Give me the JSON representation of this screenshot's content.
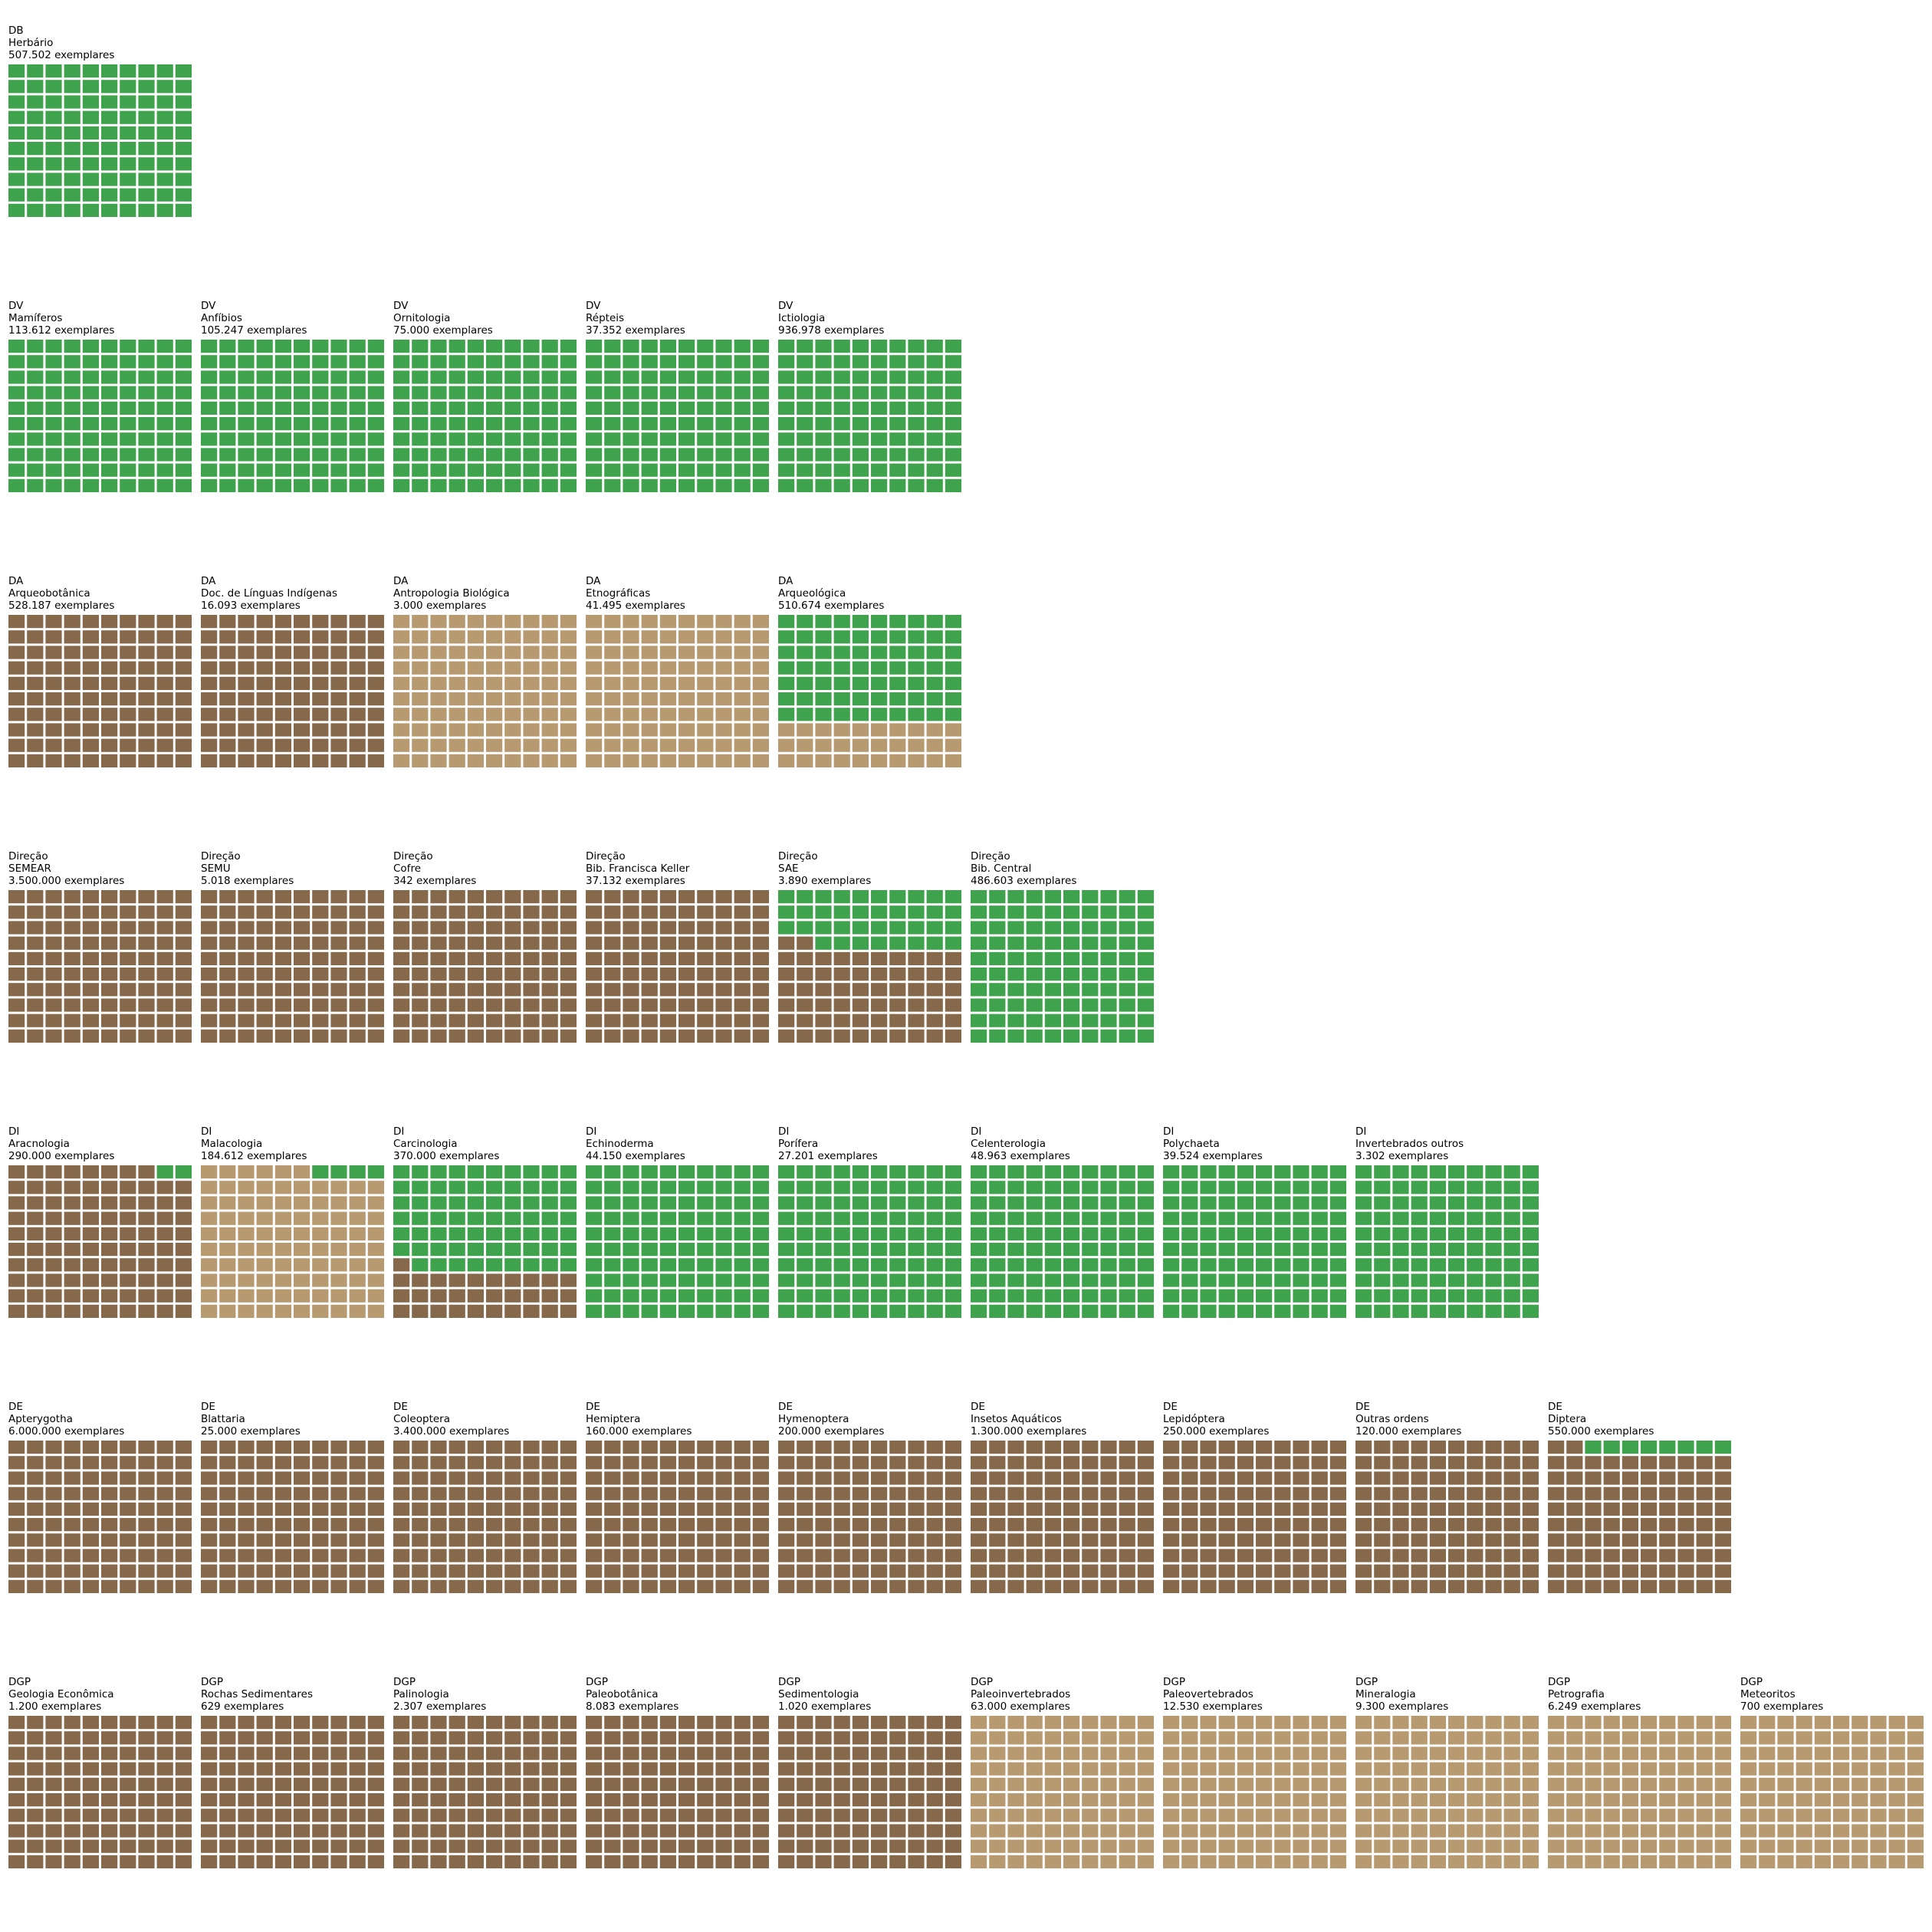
{
  "colors": {
    "green": "#3fa34d",
    "dark_brown": "#85694a",
    "light_brown": "#b89a71",
    "background": "#ffffff"
  },
  "chart_data": {
    "type": "waffle",
    "title": "",
    "units_per_grid": 100,
    "grid_columns": 10,
    "grid_rows": 10,
    "fill_order": "bottom-up, left-to-right",
    "rows": [
      {
        "department": "DB",
        "panels": [
          {
            "name": "Herbário",
            "count_label": "507.502 exemplares",
            "green": 100,
            "dark_brown": 0,
            "light_brown": 0
          }
        ]
      },
      {
        "department": "DV",
        "panels": [
          {
            "name": "Mamíferos",
            "count_label": "113.612 exemplares",
            "green": 100,
            "dark_brown": 0,
            "light_brown": 0
          },
          {
            "name": "Anfíbios",
            "count_label": "105.247 exemplares",
            "green": 100,
            "dark_brown": 0,
            "light_brown": 0
          },
          {
            "name": "Ornitologia",
            "count_label": "75.000 exemplares",
            "green": 100,
            "dark_brown": 0,
            "light_brown": 0
          },
          {
            "name": "Répteis",
            "count_label": "37.352 exemplares",
            "green": 100,
            "dark_brown": 0,
            "light_brown": 0
          },
          {
            "name": "Ictiologia",
            "count_label": "936.978 exemplares",
            "green": 100,
            "dark_brown": 0,
            "light_brown": 0
          }
        ]
      },
      {
        "department": "DA",
        "panels": [
          {
            "name": "Arqueobotânica",
            "count_label": "528.187 exemplares",
            "green": 0,
            "dark_brown": 100,
            "light_brown": 0
          },
          {
            "name": "Doc. de Línguas Indígenas",
            "count_label": "16.093 exemplares",
            "green": 0,
            "dark_brown": 100,
            "light_brown": 0
          },
          {
            "name": "Antropologia Biológica",
            "count_label": "3.000 exemplares",
            "green": 0,
            "dark_brown": 0,
            "light_brown": 100
          },
          {
            "name": "Etnográficas",
            "count_label": "41.495 exemplares",
            "green": 0,
            "dark_brown": 0,
            "light_brown": 100
          },
          {
            "name": "Arqueológica",
            "count_label": "510.674 exemplares",
            "green": 70,
            "dark_brown": 0,
            "light_brown": 30
          }
        ]
      },
      {
        "department": "Direção",
        "panels": [
          {
            "name": "SEMEAR",
            "count_label": "3.500.000 exemplares",
            "green": 0,
            "dark_brown": 100,
            "light_brown": 0
          },
          {
            "name": "SEMU",
            "count_label": "5.018 exemplares",
            "green": 0,
            "dark_brown": 100,
            "light_brown": 0
          },
          {
            "name": "Cofre",
            "count_label": "342 exemplares",
            "green": 0,
            "dark_brown": 100,
            "light_brown": 0
          },
          {
            "name": "Bib. Francisca Keller",
            "count_label": "37.132 exemplares",
            "green": 0,
            "dark_brown": 100,
            "light_brown": 0
          },
          {
            "name": "SAE",
            "count_label": "3.890 exemplares",
            "green": 38,
            "dark_brown": 62,
            "light_brown": 0
          },
          {
            "name": "Bib. Central",
            "count_label": "486.603 exemplares",
            "green": 100,
            "dark_brown": 0,
            "light_brown": 0
          }
        ]
      },
      {
        "department": "DI",
        "panels": [
          {
            "name": "Aracnologia",
            "count_label": "290.000 exemplares",
            "green": 2,
            "dark_brown": 98,
            "light_brown": 0
          },
          {
            "name": "Malacologia",
            "count_label": "184.612 exemplares",
            "green": 4,
            "dark_brown": 0,
            "light_brown": 96
          },
          {
            "name": "Carcinologia",
            "count_label": "370.000 exemplares",
            "green": 69,
            "dark_brown": 31,
            "light_brown": 0
          },
          {
            "name": "Echinoderma",
            "count_label": "44.150 exemplares",
            "green": 100,
            "dark_brown": 0,
            "light_brown": 0
          },
          {
            "name": "Porífera",
            "count_label": "27.201 exemplares",
            "green": 100,
            "dark_brown": 0,
            "light_brown": 0
          },
          {
            "name": "Celenterologia",
            "count_label": "48.963 exemplares",
            "green": 100,
            "dark_brown": 0,
            "light_brown": 0
          },
          {
            "name": "Polychaeta",
            "count_label": "39.524 exemplares",
            "green": 100,
            "dark_brown": 0,
            "light_brown": 0
          },
          {
            "name": "Invertebrados outros",
            "count_label": "3.302 exemplares",
            "green": 100,
            "dark_brown": 0,
            "light_brown": 0
          }
        ]
      },
      {
        "department": "DE",
        "panels": [
          {
            "name": "Apterygotha",
            "count_label": "6.000.000 exemplares",
            "green": 0,
            "dark_brown": 100,
            "light_brown": 0
          },
          {
            "name": "Blattaria",
            "count_label": "25.000 exemplares",
            "green": 0,
            "dark_brown": 100,
            "light_brown": 0
          },
          {
            "name": "Coleoptera",
            "count_label": "3.400.000 exemplares",
            "green": 0,
            "dark_brown": 100,
            "light_brown": 0
          },
          {
            "name": "Hemiptera",
            "count_label": "160.000 exemplares",
            "green": 0,
            "dark_brown": 100,
            "light_brown": 0
          },
          {
            "name": "Hymenoptera",
            "count_label": "200.000 exemplares",
            "green": 0,
            "dark_brown": 100,
            "light_brown": 0
          },
          {
            "name": "Insetos Aquáticos",
            "count_label": "1.300.000 exemplares",
            "green": 0,
            "dark_brown": 100,
            "light_brown": 0
          },
          {
            "name": "Lepidóptera",
            "count_label": "250.000 exemplares",
            "green": 0,
            "dark_brown": 100,
            "light_brown": 0
          },
          {
            "name": "Outras ordens",
            "count_label": "120.000 exemplares",
            "green": 0,
            "dark_brown": 100,
            "light_brown": 0
          },
          {
            "name": "Diptera",
            "count_label": "550.000 exemplares",
            "green": 8,
            "dark_brown": 92,
            "light_brown": 0
          }
        ]
      },
      {
        "department": "DGP",
        "panels": [
          {
            "name": "Geologia Econômica",
            "count_label": "1.200 exemplares",
            "green": 0,
            "dark_brown": 100,
            "light_brown": 0
          },
          {
            "name": "Rochas Sedimentares",
            "count_label": "629 exemplares",
            "green": 0,
            "dark_brown": 100,
            "light_brown": 0
          },
          {
            "name": "Palinologia",
            "count_label": "2.307 exemplares",
            "green": 0,
            "dark_brown": 100,
            "light_brown": 0
          },
          {
            "name": "Paleobotânica",
            "count_label": "8.083 exemplares",
            "green": 0,
            "dark_brown": 100,
            "light_brown": 0
          },
          {
            "name": "Sedimentologia",
            "count_label": "1.020 exemplares",
            "green": 0,
            "dark_brown": 100,
            "light_brown": 0
          },
          {
            "name": "Paleoinvertebrados",
            "count_label": "63.000 exemplares",
            "green": 0,
            "dark_brown": 0,
            "light_brown": 100
          },
          {
            "name": "Paleovertebrados",
            "count_label": "12.530 exemplares",
            "green": 0,
            "dark_brown": 0,
            "light_brown": 100
          },
          {
            "name": "Mineralogia",
            "count_label": "9.300 exemplares",
            "green": 0,
            "dark_brown": 0,
            "light_brown": 100
          },
          {
            "name": "Petrografia",
            "count_label": "6.249 exemplares",
            "green": 0,
            "dark_brown": 0,
            "light_brown": 100
          },
          {
            "name": "Meteoritos",
            "count_label": "700 exemplares",
            "green": 0,
            "dark_brown": 0,
            "light_brown": 100
          }
        ]
      }
    ]
  }
}
